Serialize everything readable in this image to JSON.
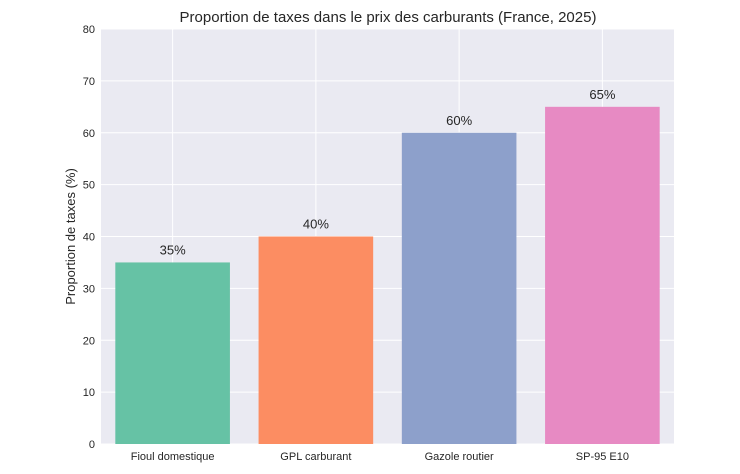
{
  "chart_data": {
    "type": "bar",
    "title": "Proportion de taxes dans le prix des carburants (France, 2025)",
    "xlabel": "",
    "ylabel": "Proportion de taxes (%)",
    "categories": [
      "Fioul domestique",
      "GPL carburant",
      "Gazole routier",
      "SP-95 E10"
    ],
    "values": [
      35,
      40,
      60,
      65
    ],
    "data_labels": [
      "35%",
      "40%",
      "60%",
      "65%"
    ],
    "colors": [
      "#66c2a5",
      "#fc8d62",
      "#8da0cb",
      "#e78ac3"
    ],
    "ylim": [
      0,
      80
    ],
    "yticks": [
      0,
      10,
      20,
      30,
      40,
      50,
      60,
      70,
      80
    ],
    "grid": true,
    "background": "#eaeaf2",
    "legend": "none"
  }
}
